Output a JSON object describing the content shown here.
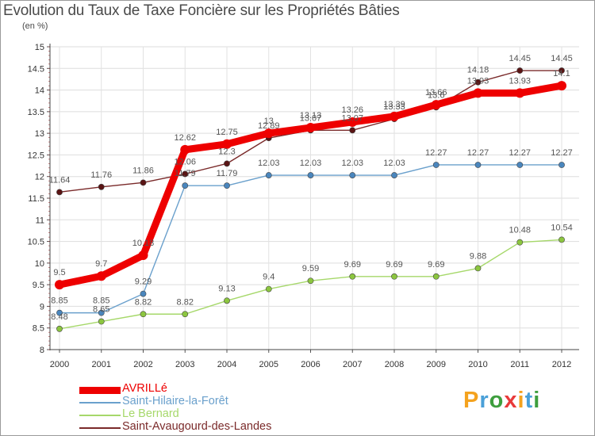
{
  "title": "Evolution du Taux de Taxe Foncière sur les Propriétés Bâties",
  "unit": "(en %)",
  "logo": {
    "letters": [
      "P",
      "r",
      "o",
      "x",
      "i",
      "t",
      "i"
    ],
    "colors": [
      "#f4a21e",
      "#4aa0d8",
      "#3e9e3e",
      "#e8393a",
      "#f4a21e",
      "#4aa0d8",
      "#3e9e3e"
    ]
  },
  "chart_data": {
    "type": "line",
    "title": "Evolution du Taux de Taxe Foncière sur les Propriétés Bâties",
    "ylabel": "(en %)",
    "xlabel": "",
    "x": [
      "2000",
      "2001",
      "2002",
      "2003",
      "2004",
      "2005",
      "2006",
      "2007",
      "2008",
      "2009",
      "2010",
      "2011",
      "2012"
    ],
    "ylim": [
      8,
      15
    ],
    "yticks": [
      "8",
      "8.5",
      "9",
      "9.5",
      "10",
      "10.5",
      "11",
      "11.5",
      "12",
      "12.5",
      "13",
      "13.5",
      "14",
      "14.5",
      "15"
    ],
    "grid": true,
    "series": [
      {
        "name": "Saint-Avaugourd-des-Landes",
        "color": "#7a2a2a",
        "marker": "#5a1414",
        "values": [
          11.64,
          11.76,
          11.86,
          12.06,
          12.3,
          12.89,
          13.07,
          13.07,
          13.33,
          13.6,
          14.18,
          14.45,
          14.45
        ],
        "labels": [
          "11.64",
          "11.76",
          "11.86",
          "12.06",
          "12.3",
          "12.89",
          "13.07",
          "13.07",
          "13.33",
          "13.6",
          "14.18",
          "14.45",
          "14.45"
        ]
      },
      {
        "name": "Le Bernard",
        "color": "#a6d86a",
        "marker": "#8cc63f",
        "values": [
          8.48,
          8.65,
          8.82,
          8.82,
          9.13,
          9.4,
          9.59,
          9.69,
          9.69,
          9.69,
          9.88,
          10.48,
          10.54
        ],
        "labels": [
          "8.48",
          "8.65",
          "8.82",
          "8.82",
          "9.13",
          "9.4",
          "9.59",
          "9.69",
          "9.69",
          "9.69",
          "9.88",
          "10.48",
          "10.54"
        ]
      },
      {
        "name": "Saint-Hilaire-la-Forêt",
        "color": "#6aa0cc",
        "marker": "#4a86bd",
        "values": [
          8.85,
          8.85,
          9.29,
          11.79,
          11.79,
          12.03,
          12.03,
          12.03,
          12.03,
          12.27,
          12.27,
          12.27,
          12.27
        ],
        "labels": [
          "8.85",
          "8.85",
          "9.29",
          "11.79",
          "11.79",
          "12.03",
          "12.03",
          "12.03",
          "12.03",
          "12.27",
          "12.27",
          "12.27",
          "12.27"
        ]
      },
      {
        "name": "AVRILLé",
        "color": "#ee0000",
        "marker": "#ee0000",
        "values": [
          9.5,
          9.7,
          10.18,
          12.62,
          12.75,
          13,
          13.13,
          13.26,
          13.39,
          13.66,
          13.93,
          13.93,
          14.1
        ],
        "labels": [
          "9.5",
          "9.7",
          "10.18",
          "12.62",
          "12.75",
          "13",
          "13.13",
          "13.26",
          "13.39",
          "13.66",
          "13.93",
          "13.93",
          "14.1"
        ]
      }
    ],
    "legend": [
      "AVRILLé",
      "Saint-Hilaire-la-Forêt",
      "Le Bernard",
      "Saint-Avaugourd-des-Landes"
    ]
  }
}
